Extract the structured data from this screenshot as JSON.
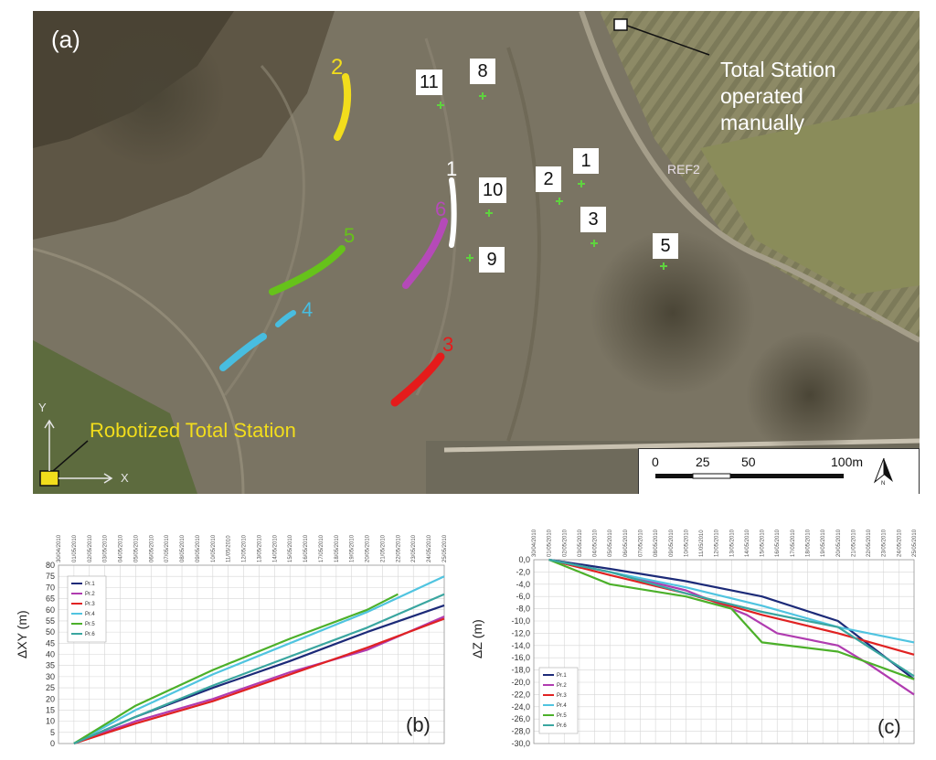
{
  "panel_a": {
    "label": "(a)",
    "total_station_manual": [
      "Total Station",
      "operated",
      "manually"
    ],
    "robotized_label": "Robotized Total Station",
    "ref_label": "REF2",
    "axis_x": "X",
    "axis_y": "Y",
    "scale": {
      "ticks": [
        "0",
        "25",
        "50",
        "100m"
      ],
      "north": "N"
    },
    "track_numbers": [
      {
        "id": "1",
        "color": "#ffffff"
      },
      {
        "id": "2",
        "color": "#f2dd1c"
      },
      {
        "id": "3",
        "color": "#e51b1b"
      },
      {
        "id": "4",
        "color": "#48bde0"
      },
      {
        "id": "5",
        "color": "#66c21a"
      },
      {
        "id": "6",
        "color": "#b54ab8"
      }
    ],
    "points": [
      "11",
      "8",
      "1",
      "2",
      "10",
      "3",
      "9",
      "5"
    ]
  },
  "dates": [
    "30/04/2010",
    "01/05/2010",
    "02/05/2010",
    "03/05/2010",
    "04/05/2010",
    "05/05/2010",
    "06/05/2010",
    "07/05/2010",
    "08/05/2010",
    "09/05/2010",
    "10/05/2010",
    "11/05/2010",
    "12/05/2010",
    "13/05/2010",
    "14/05/2010",
    "15/05/2010",
    "16/05/2010",
    "17/05/2010",
    "18/05/2010",
    "19/05/2010",
    "20/05/2010",
    "21/05/2010",
    "22/05/2010",
    "23/05/2010",
    "24/05/2010",
    "25/05/2010"
  ],
  "chart_data": [
    {
      "type": "line",
      "panel_label": "(b)",
      "ylabel": "ΔXY (m)",
      "ylim": [
        0,
        80
      ],
      "yticks": [
        0,
        5,
        10,
        15,
        20,
        25,
        30,
        35,
        40,
        45,
        50,
        55,
        60,
        65,
        70,
        75,
        80
      ],
      "legend_position": "top-left",
      "grid": true,
      "series": [
        {
          "name": "Pr.1",
          "color": "#1c2a78",
          "x": [
            1,
            5,
            10,
            15,
            20,
            25
          ],
          "values": [
            0,
            12,
            25,
            37,
            50,
            62
          ]
        },
        {
          "name": "Pr.2",
          "color": "#b03cb0",
          "x": [
            1,
            5,
            10,
            15,
            18,
            20,
            25
          ],
          "values": [
            0,
            10,
            20,
            32,
            38,
            42,
            57
          ]
        },
        {
          "name": "Pr.3",
          "color": "#e02222",
          "x": [
            1,
            5,
            10,
            15,
            20,
            25
          ],
          "values": [
            0,
            9,
            19,
            31,
            43,
            56
          ]
        },
        {
          "name": "Pr.4",
          "color": "#50c4e0",
          "x": [
            1,
            5,
            10,
            15,
            20,
            25
          ],
          "values": [
            0,
            15,
            31,
            45,
            59,
            75
          ]
        },
        {
          "name": "Pr.5",
          "color": "#4cb02a",
          "x": [
            1,
            5,
            10,
            15,
            20,
            22
          ],
          "values": [
            0,
            17,
            33,
            47,
            60,
            67
          ]
        },
        {
          "name": "Pr.6",
          "color": "#3aa6a0",
          "x": [
            1,
            5,
            10,
            15,
            20,
            25
          ],
          "values": [
            0,
            12,
            26,
            39,
            52,
            67
          ]
        }
      ]
    },
    {
      "type": "line",
      "panel_label": "(c)",
      "ylabel": "ΔZ (m)",
      "ylim": [
        -30,
        0
      ],
      "yticks": [
        "0,0",
        "-2,0",
        "-4,0",
        "-6,0",
        "-8,0",
        "-10,0",
        "-12,0",
        "-14,0",
        "-16,0",
        "-18,0",
        "-20,0",
        "-22,0",
        "-24,0",
        "-26,0",
        "-28,0",
        "-30,0"
      ],
      "legend_position": "bottom-left",
      "grid": true,
      "series": [
        {
          "name": "Pr.1",
          "color": "#1c2a78",
          "x": [
            1,
            5,
            10,
            15,
            20,
            25
          ],
          "values": [
            0,
            -1.5,
            -3.5,
            -6,
            -10,
            -19.5
          ]
        },
        {
          "name": "Pr.2",
          "color": "#b03cb0",
          "x": [
            1,
            5,
            10,
            14,
            16,
            20,
            22,
            25
          ],
          "values": [
            0,
            -2,
            -5,
            -9,
            -12,
            -14,
            -17,
            -22
          ]
        },
        {
          "name": "Pr.3",
          "color": "#e02222",
          "x": [
            1,
            5,
            10,
            15,
            20,
            25
          ],
          "values": [
            0,
            -2.5,
            -5.5,
            -9,
            -12,
            -15.5
          ]
        },
        {
          "name": "Pr.4",
          "color": "#50c4e0",
          "x": [
            1,
            5,
            10,
            15,
            20,
            25
          ],
          "values": [
            0,
            -2,
            -4.5,
            -7.5,
            -11,
            -13.5
          ]
        },
        {
          "name": "Pr.5",
          "color": "#4cb02a",
          "x": [
            1,
            5,
            10,
            13,
            15,
            20,
            25
          ],
          "values": [
            0,
            -4,
            -6,
            -8,
            -13.5,
            -15,
            -19.5
          ]
        },
        {
          "name": "Pr.6",
          "color": "#3aa6a0",
          "x": [
            1,
            5,
            10,
            15,
            20,
            25
          ],
          "values": [
            0,
            -2,
            -5.5,
            -8.5,
            -11,
            -19
          ]
        }
      ]
    }
  ]
}
